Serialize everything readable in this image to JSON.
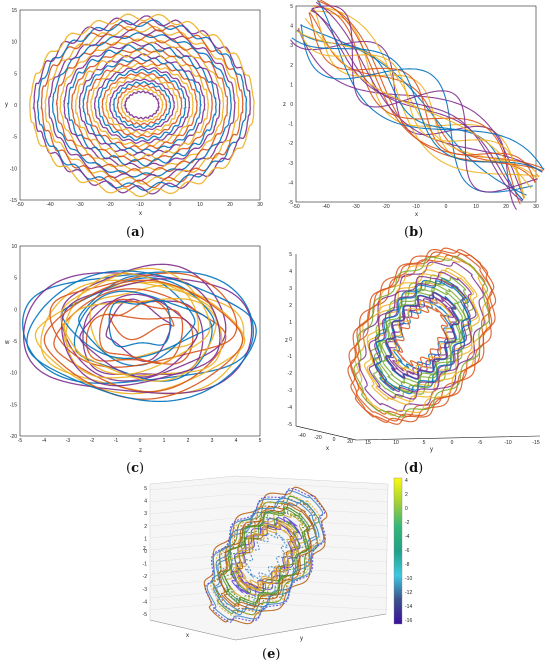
{
  "figure": {
    "panels": [
      {
        "label_open": "(",
        "label_letter": "a",
        "label_close": ")"
      },
      {
        "label_open": "(",
        "label_letter": "b",
        "label_close": ")"
      },
      {
        "label_open": "(",
        "label_letter": "c",
        "label_close": ")"
      },
      {
        "label_open": "(",
        "label_letter": "d",
        "label_close": ")"
      },
      {
        "label_open": "(",
        "label_letter": "e",
        "label_close": ")"
      }
    ]
  },
  "chart_data": [
    {
      "type": "line",
      "panel": "a",
      "xlabel": "x",
      "ylabel": "y",
      "xlim": [
        -50,
        30
      ],
      "ylim": [
        -15,
        15
      ],
      "xticks": [
        "-50",
        "-40",
        "-30",
        "-20",
        "-10",
        "0",
        "10",
        "20",
        "30"
      ],
      "yticks": [
        "15",
        "10",
        "5",
        "0",
        "-5",
        "-10",
        "-15"
      ],
      "series_colors": [
        "#7e2f8e",
        "#edb120",
        "#d95319",
        "#0072bd"
      ]
    },
    {
      "type": "line",
      "panel": "b",
      "xlabel": "x",
      "ylabel": "z",
      "xlim": [
        -50,
        30
      ],
      "ylim": [
        -5,
        5
      ],
      "xticks": [
        "-50",
        "-40",
        "-30",
        "-20",
        "-10",
        "0",
        "10",
        "20",
        "30"
      ],
      "yticks": [
        "5",
        "4",
        "3",
        "2",
        "1",
        "0",
        "-1",
        "-2",
        "-3",
        "-4",
        "-5"
      ],
      "series_colors": [
        "#7e2f8e",
        "#edb120",
        "#d95319",
        "#0072bd"
      ]
    },
    {
      "type": "line",
      "panel": "c",
      "xlabel": "z",
      "ylabel": "w",
      "xlim": [
        -5,
        5
      ],
      "ylim": [
        -20,
        10
      ],
      "xticks": [
        "-5",
        "-4",
        "-3",
        "-2",
        "-1",
        "0",
        "1",
        "2",
        "3",
        "4",
        "5"
      ],
      "yticks": [
        "10",
        "5",
        "0",
        "-5",
        "-10",
        "-15",
        "-20"
      ],
      "series_colors": [
        "#7e2f8e",
        "#edb120",
        "#d95319",
        "#0072bd"
      ]
    },
    {
      "type": "line",
      "panel": "d",
      "xlabel": "x",
      "ylabel": "z",
      "zlabel": "y",
      "zticks": [
        "5",
        "4",
        "3",
        "2",
        "1",
        "0",
        "-1",
        "-2",
        "-3",
        "-4",
        "-5"
      ],
      "xticks": [
        "-40",
        "-20",
        "0",
        "20"
      ],
      "yticks": [
        "15",
        "10",
        "5",
        "0",
        "-5",
        "-10",
        "-15"
      ],
      "series_colors": [
        "#7e2f8e",
        "#edb120",
        "#d95319",
        "#0072bd",
        "#77ac30"
      ]
    },
    {
      "type": "line",
      "panel": "e",
      "xlabel": "x",
      "ylabel": "y",
      "zlabel": "z",
      "zticks": [
        "5",
        "4",
        "3",
        "2",
        "1",
        "0",
        "-1",
        "-2",
        "-3",
        "-4",
        "-5"
      ],
      "colorbar_ticks": [
        "4",
        "2",
        "0",
        "-2",
        "-4",
        "-6",
        "-8",
        "-10",
        "-12",
        "-14",
        "-16"
      ],
      "colorbar_colors": [
        "#f9fb0e",
        "#a4d035",
        "#35b779",
        "#1fa187",
        "#3fc8e0",
        "#3b528b",
        "#3b0f9f"
      ],
      "series_colors": [
        "#b35806",
        "#d9a42a",
        "#4d9221",
        "#3b84c4",
        "#5b3fd6"
      ]
    }
  ]
}
